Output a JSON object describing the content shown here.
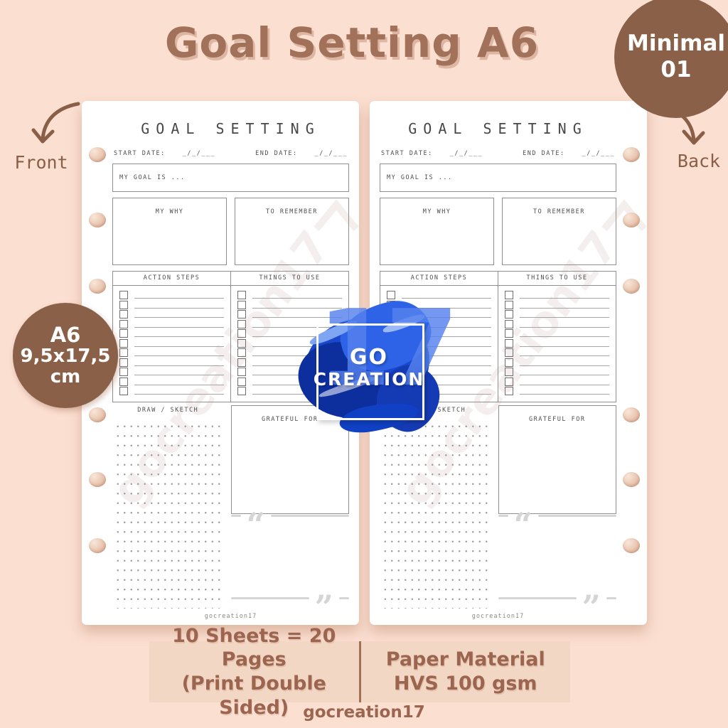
{
  "header": {
    "title": "Goal Setting A6"
  },
  "badges": {
    "minimal": {
      "line1": "Minimal",
      "line2": "01"
    },
    "size": {
      "line1": "A6",
      "line2": "9,5x17,5",
      "line3": "cm"
    }
  },
  "labels": {
    "front": "Front",
    "back": "Back"
  },
  "page": {
    "title": "GOAL SETTING",
    "start_date_label": "START DATE:",
    "end_date_label": "END DATE:",
    "date_placeholder": "_/_/___",
    "goal_label": "MY GOAL IS ...",
    "why_label": "MY WHY",
    "remember_label": "TO REMEMBER",
    "action_label": "ACTION STEPS",
    "things_label": "THINGS TO USE",
    "checklist_rows": 11,
    "draw_label": "DRAW / SKETCH",
    "grateful_label": "GRATEFUL FOR",
    "open_quote": "“",
    "close_quote": "”",
    "footer": "gocreation17",
    "watermark": "gocreation17"
  },
  "logo": {
    "number": "17",
    "line1": "GO",
    "line2": "CREATION"
  },
  "footer_bar": {
    "left_line1": "10 Sheets = 20 Pages",
    "left_line2": "(Print Double Sided)",
    "right_line1": "Paper Material",
    "right_line2": "HVS 100 gsm"
  },
  "brand": "gocreation17",
  "colors": {
    "background": "#fbdfd1",
    "badge_brown": "#8a6148",
    "text_brown": "#9c6550",
    "logo_blue": "#1b47cc"
  }
}
